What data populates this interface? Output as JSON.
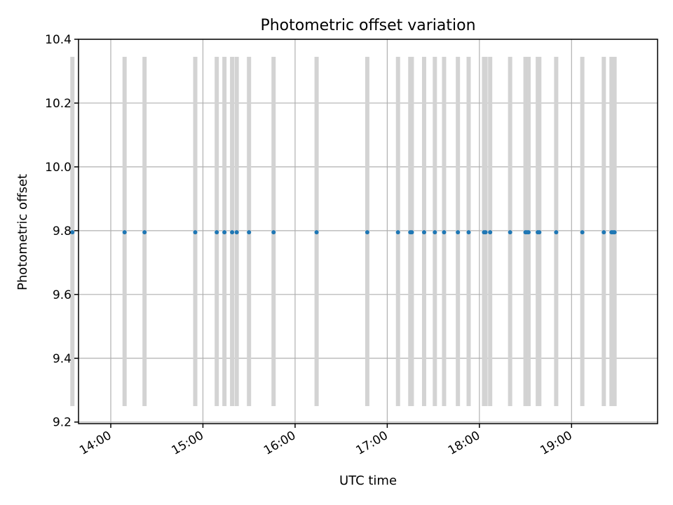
{
  "chart_data": {
    "type": "scatter",
    "title": "Photometric offset variation",
    "xlabel": "UTC time",
    "ylabel": "Photometric offset",
    "xlim": [
      "13:39",
      "19:56"
    ],
    "ylim": [
      9.195,
      10.4
    ],
    "x_ticks": [
      "14:00",
      "15:00",
      "16:00",
      "17:00",
      "18:00",
      "19:00"
    ],
    "y_ticks": [
      "9.2",
      "9.4",
      "9.6",
      "9.8",
      "10.0",
      "10.2",
      "10.4"
    ],
    "grid": true,
    "series": [
      {
        "x": [
          "13:35",
          "14:09",
          "14:22",
          "14:55",
          "15:09",
          "15:14",
          "15:19",
          "15:22",
          "15:30",
          "15:46",
          "16:14",
          "16:47",
          "17:07",
          "17:15",
          "17:16",
          "17:24",
          "17:31",
          "17:37",
          "17:46",
          "17:53",
          "18:03",
          "18:04",
          "18:07",
          "18:20",
          "18:30",
          "18:31",
          "18:32",
          "18:38",
          "18:39",
          "18:50",
          "19:07",
          "19:21",
          "19:26",
          "19:27",
          "19:28"
        ],
        "y": [
          9.795,
          9.795,
          9.795,
          9.795,
          9.795,
          9.795,
          9.795,
          9.795,
          9.795,
          9.795,
          9.795,
          9.795,
          9.795,
          9.795,
          9.795,
          9.795,
          9.795,
          9.795,
          9.795,
          9.795,
          9.795,
          9.795,
          9.795,
          9.795,
          9.795,
          9.795,
          9.795,
          9.795,
          9.795,
          9.795,
          9.795,
          9.795,
          9.795,
          9.795,
          9.795
        ],
        "y_err_range": [
          9.25,
          10.345
        ]
      }
    ],
    "colors": {
      "points": "#1f77b4",
      "error_bars": "#d3d3d3",
      "grid": "#b0b0b0"
    }
  }
}
